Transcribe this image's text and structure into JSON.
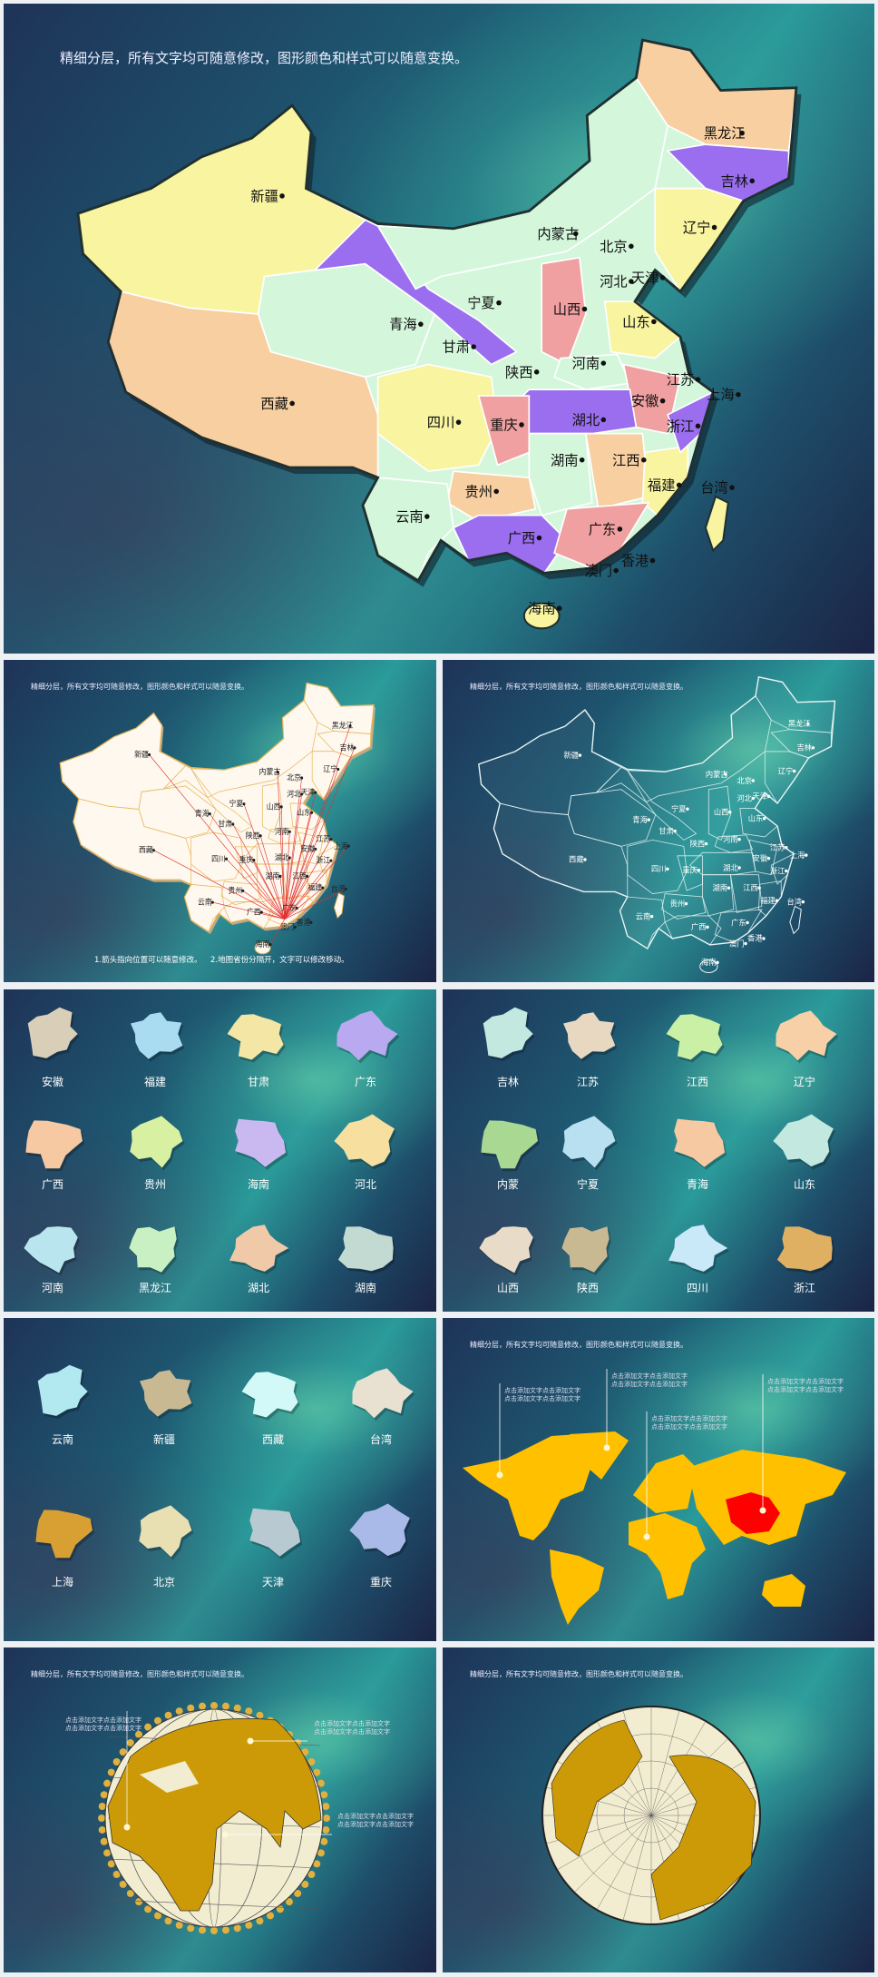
{
  "slide_title": "精细分层，所有文字均可随意修改，图形颜色和样式可以随意变换。",
  "main_map": {
    "provinces": [
      "新疆",
      "西藏",
      "青海",
      "甘肃",
      "宁夏",
      "内蒙古",
      "黑龙江",
      "吉林",
      "辽宁",
      "北京",
      "天津",
      "河北",
      "山西",
      "山东",
      "河南",
      "陕西",
      "四川",
      "重庆",
      "湖北",
      "安徽",
      "江苏",
      "上海",
      "浙江",
      "湖南",
      "江西",
      "福建",
      "台湾",
      "贵州",
      "云南",
      "广西",
      "广东",
      "香港",
      "澳门",
      "海南"
    ],
    "colors": {
      "yellow": "#f8f4a0",
      "mint": "#d4f7dc",
      "peach": "#f8cfa0",
      "purple": "#9b6ef0",
      "pink": "#f0a0a0"
    }
  },
  "arrow_map": {
    "notes": [
      "1.箭头指向位置可以随意修改。",
      "2.地图省份分隔开，文字可以修改移动。"
    ],
    "fill": "#fff8ee",
    "arrow_color": "#e03030"
  },
  "outline_map": {
    "stroke": "#e8f4f4"
  },
  "province_grid_1": [
    {
      "label": "安徽",
      "color": "#d9cfb8"
    },
    {
      "label": "福建",
      "color": "#a9dcf0"
    },
    {
      "label": "甘肃",
      "color": "#f4e6a4"
    },
    {
      "label": "广东",
      "color": "#b9a9f0"
    },
    {
      "label": "广西",
      "color": "#f6c9a2"
    },
    {
      "label": "贵州",
      "color": "#d8f0a2"
    },
    {
      "label": "海南",
      "color": "#c9b9f0"
    },
    {
      "label": "河北",
      "color": "#f7dfa0"
    },
    {
      "label": "河南",
      "color": "#b9e6ee"
    },
    {
      "label": "黑龙江",
      "color": "#c8f0c2"
    },
    {
      "label": "湖北",
      "color": "#f0caa8"
    },
    {
      "label": "湖南",
      "color": "#c2dad2"
    }
  ],
  "province_grid_2": [
    {
      "label": "吉林",
      "color": "#c2e8e0"
    },
    {
      "label": "江苏",
      "color": "#e8d8c2"
    },
    {
      "label": "江西",
      "color": "#c9f0a4"
    },
    {
      "label": "辽宁",
      "color": "#f7d0a8"
    },
    {
      "label": "内蒙",
      "color": "#a9d892"
    },
    {
      "label": "宁夏",
      "color": "#b9e0f0"
    },
    {
      "label": "青海",
      "color": "#f7c9a2"
    },
    {
      "label": "山东",
      "color": "#c2e8e0"
    },
    {
      "label": "山西",
      "color": "#e8dcc9"
    },
    {
      "label": "陕西",
      "color": "#c9b992"
    },
    {
      "label": "四川",
      "color": "#c9e8f8"
    },
    {
      "label": "浙江",
      "color": "#e0b062"
    }
  ],
  "province_grid_3": [
    {
      "label": "云南",
      "color": "#b2e8f0"
    },
    {
      "label": "新疆",
      "color": "#c9b992"
    },
    {
      "label": "西藏",
      "color": "#d2f8f8"
    },
    {
      "label": "台湾",
      "color": "#e8e0d0"
    },
    {
      "label": "上海",
      "color": "#d8a032"
    },
    {
      "label": "北京",
      "color": "#e8e0b2"
    },
    {
      "label": "天津",
      "color": "#b9c9d2"
    },
    {
      "label": "重庆",
      "color": "#a9b9e8"
    }
  ],
  "world_map": {
    "land_color": "#ffc000",
    "highlight_color": "#ff0000",
    "callouts": [
      "点击添加文字点击添加文字\n点击添加文字点击添加文字",
      "点击添加文字点击添加文字\n点击添加文字点击添加文字",
      "点击添加文字点击添加文字\n点击添加文字点击添加文字",
      "点击添加文字点击添加文字\n点击添加文字点击添加文字"
    ]
  },
  "globe_1": {
    "ocean_color": "#f2ecd0",
    "land_color": "#cc9a06",
    "callouts": [
      "点击添加文字点击添加文字\n点击添加文字点击添加文字",
      "点击添加文字点击添加文字\n点击添加文字点击添加文字",
      "点击添加文字点击添加文字\n点击添加文字点击添加文字"
    ]
  },
  "globe_2": {
    "ocean_color": "#f2ecd0",
    "land_color": "#cc9a06"
  }
}
